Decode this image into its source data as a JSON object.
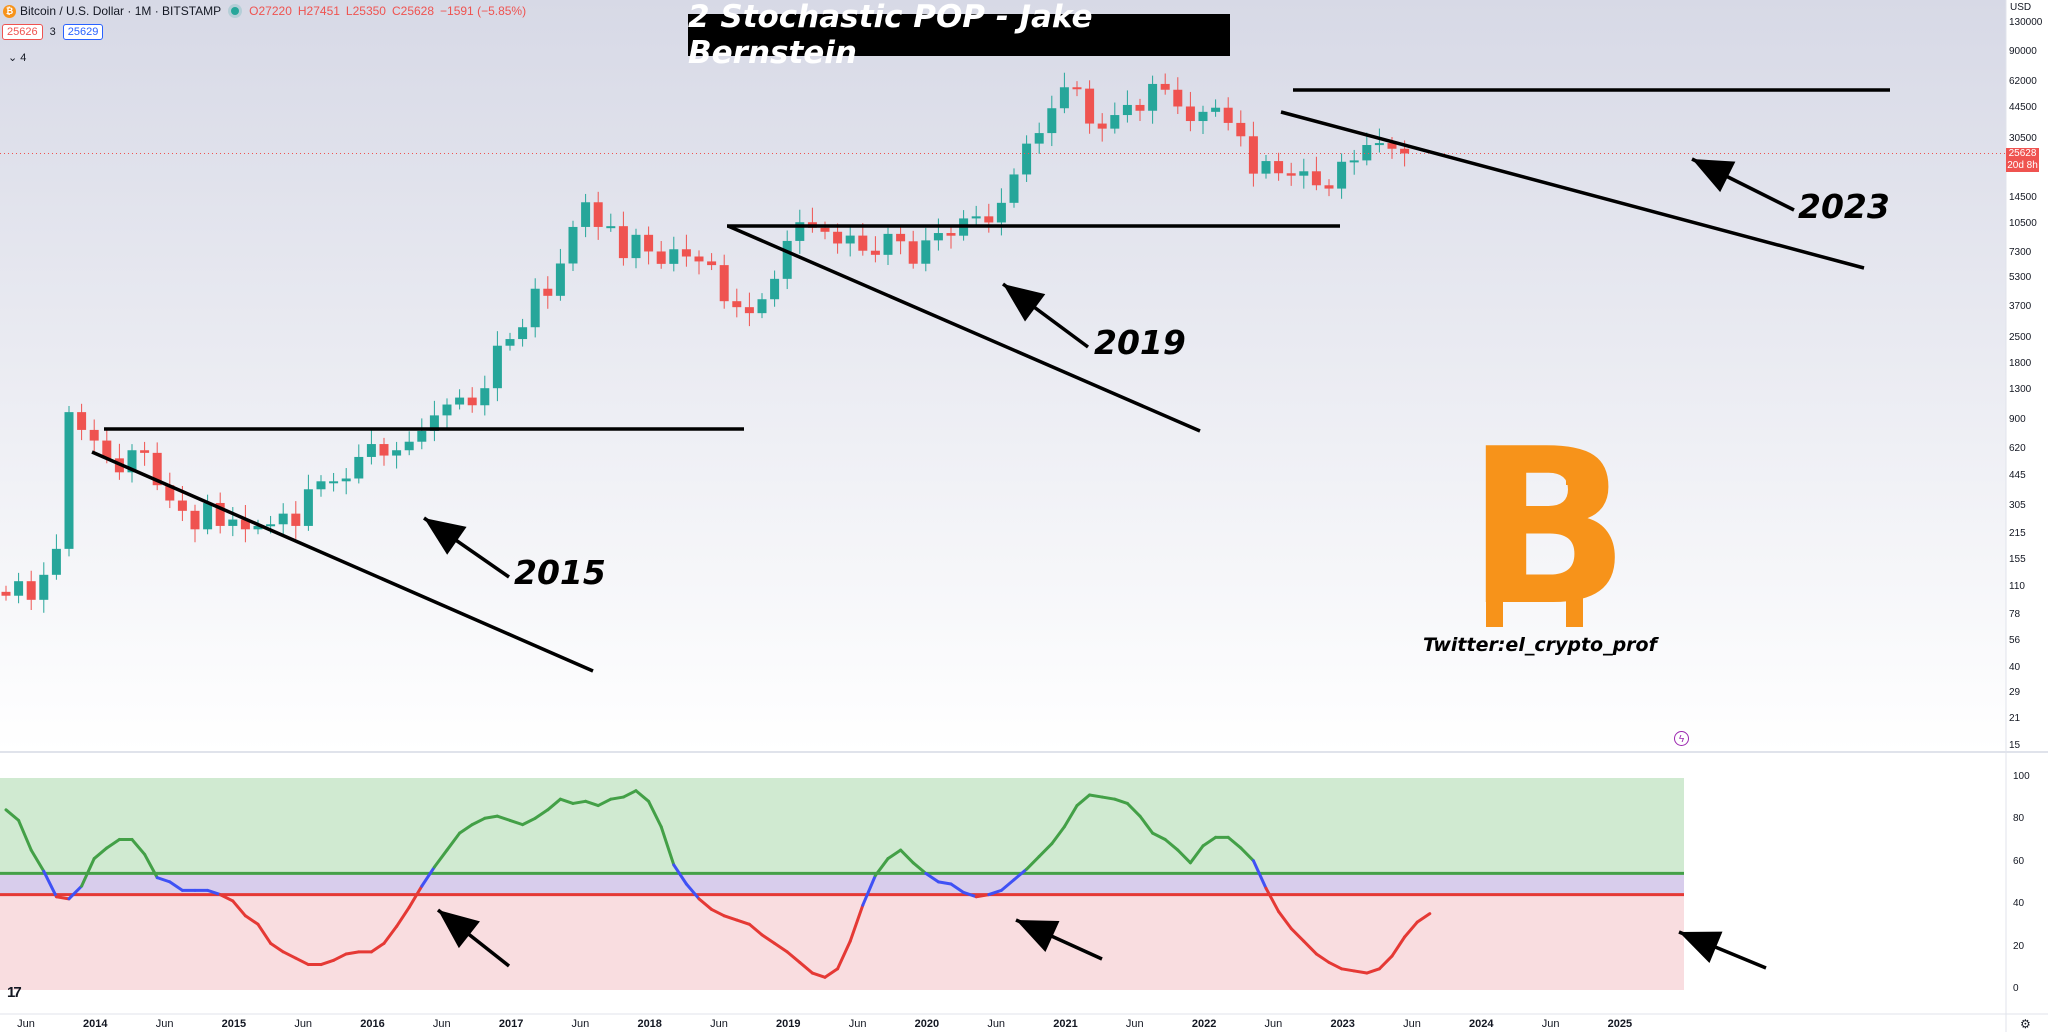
{
  "header": {
    "symbol": "Bitcoin / U.S. Dollar · 1M · BITSTAMP",
    "ohlc": {
      "o": "27220",
      "h": "27451",
      "l": "25350",
      "c": "25628",
      "change": "−1591 (−5.85%)"
    },
    "bid": "25626",
    "spread": "3",
    "ask": "25629",
    "indicators_toggle": "⌄ 4"
  },
  "overlay": {
    "title": "2 Stochastic POP - Jake Bernstein",
    "twitter": "Twitter:el_crypto_prof",
    "btc_logo_glyph": "B"
  },
  "currency": "USD",
  "current_price_label": "25628",
  "current_price_countdown": "20d 8h",
  "colors": {
    "up": "#26a69a",
    "down": "#ef5350",
    "osc_green": "#43a047",
    "osc_red": "#e53935",
    "osc_blue": "#3f51f5",
    "btc_orange": "#f7931a"
  },
  "chart_data": [
    {
      "type": "candlestick",
      "title": "Bitcoin / U.S. Dollar · 1M · BITSTAMP",
      "y_scale": "log",
      "y_ticks": [
        130000,
        90000,
        62000,
        44500,
        30500,
        21000,
        14500,
        10500,
        7300,
        5300,
        3700,
        2500,
        1800,
        1300,
        900,
        620,
        445,
        305,
        215,
        155,
        110,
        78,
        56,
        40,
        29,
        21,
        15
      ],
      "x_ticks": [
        "Jun",
        "2014",
        "Jun",
        "2015",
        "Jun",
        "2016",
        "Jun",
        "2017",
        "Jun",
        "2018",
        "Jun",
        "2019",
        "Jun",
        "2020",
        "Jun",
        "2021",
        "Jun",
        "2022",
        "Jun",
        "2023",
        "Jun",
        "2024",
        "Jun",
        "2025"
      ],
      "candles_close": [
        100,
        120,
        95,
        130,
        180,
        1000,
        800,
        700,
        560,
        470,
        620,
        600,
        400,
        330,
        290,
        230,
        320,
        240,
        260,
        230,
        240,
        245,
        280,
        240,
        380,
        420,
        420,
        435,
        570,
        670,
        580,
        620,
        690,
        790,
        960,
        1100,
        1200,
        1090,
        1350,
        2300,
        2500,
        2900,
        4700,
        4300,
        6450,
        10200,
        13900,
        10200,
        10300,
        6900,
        9240,
        7500,
        6420,
        7710,
        7040,
        6620,
        6320,
        4020,
        3730,
        3460,
        4120,
        5320,
        8560,
        10820,
        10090,
        9600,
        8290,
        9150,
        7570,
        7190,
        9350,
        8520,
        6430,
        8620,
        9450,
        9140,
        11350,
        11650,
        10790,
        13800,
        19700,
        29000,
        33100,
        45200,
        58800,
        57800,
        37300,
        35000,
        41500,
        47100,
        43800,
        61300,
        57000,
        46200,
        38500,
        43200,
        45500,
        37600,
        31800,
        19900,
        23300,
        20000,
        19400,
        20500,
        17200,
        16500,
        23100,
        23500,
        28500,
        29200,
        27200,
        25628
      ],
      "annotations": [
        "2015",
        "2019",
        "2023"
      ]
    },
    {
      "type": "line",
      "title": "",
      "ylim": [
        0,
        100
      ],
      "y_ticks": [
        100,
        80,
        60,
        40,
        20,
        0
      ],
      "levels": [
        55,
        45
      ],
      "series": [
        {
          "values": [
            85,
            80,
            66,
            56,
            44,
            43,
            49,
            62,
            67,
            71,
            71,
            64,
            53,
            51,
            47,
            47,
            47,
            45,
            42,
            35,
            31,
            22,
            18,
            15,
            12,
            12,
            14,
            17,
            18,
            18,
            22,
            30,
            39,
            49,
            58,
            66,
            74,
            78,
            81,
            82,
            80,
            78,
            81,
            85,
            90,
            88,
            89,
            87,
            90,
            91,
            94,
            89,
            77,
            59,
            50,
            43,
            38,
            35,
            33,
            31,
            26,
            22,
            18,
            13,
            8,
            6,
            10,
            23,
            40,
            54,
            62,
            66,
            60,
            55,
            51,
            50,
            46,
            44,
            45,
            47,
            52,
            57,
            63,
            69,
            77,
            87,
            92,
            91,
            90,
            88,
            82,
            74,
            71,
            66,
            60,
            68,
            72,
            72,
            67,
            61,
            48,
            37,
            29,
            23,
            17,
            13,
            10,
            9,
            8,
            10,
            16,
            25,
            32,
            36
          ]
        }
      ]
    }
  ],
  "watermark": "17"
}
